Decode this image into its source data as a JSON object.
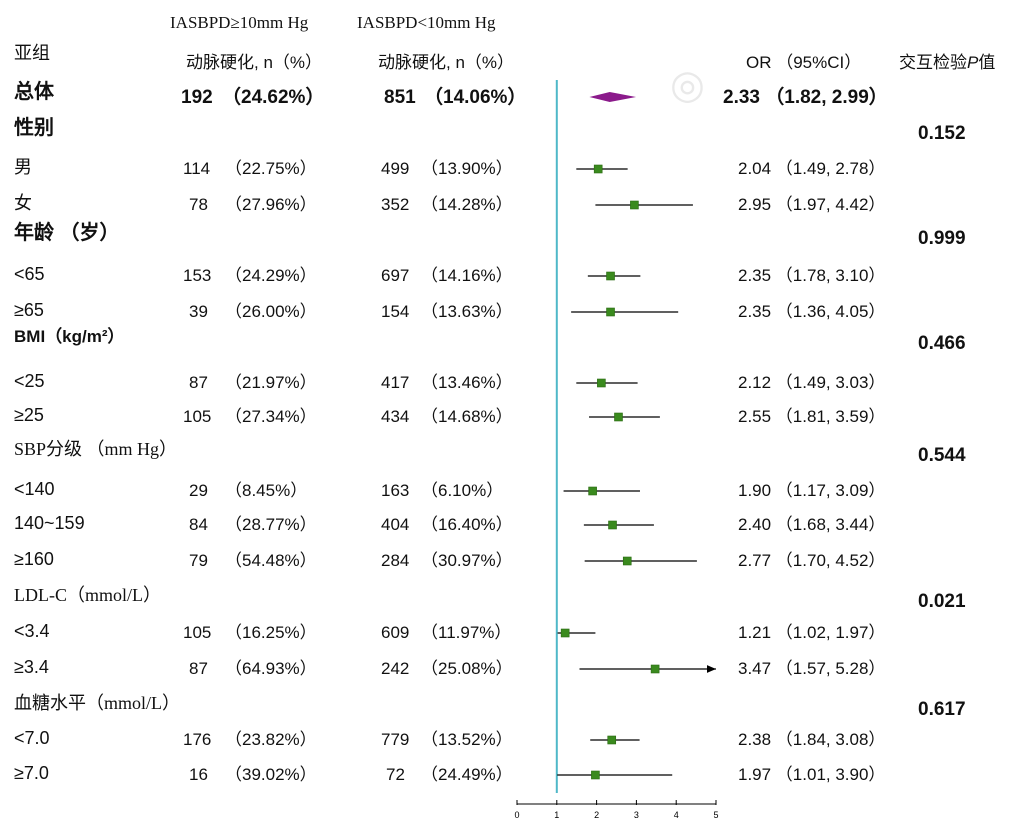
{
  "header": {
    "col1_title": "IASBPD≥10mm Hg",
    "col2_title": "IASBPD<10mm Hg",
    "subgroup_title": "亚组",
    "col1_sub": "动脉硬化, n（%）",
    "col2_sub": "动脉硬化, n（%）",
    "or_title": "OR （95%CI）",
    "p_title_prefix": "交互检验",
    "p_title_italic": "P",
    "p_title_suffix": "值"
  },
  "rows": [
    {
      "label": "总体",
      "kind": "overall",
      "c1n": "192",
      "c1p": "（24.62%）",
      "c2n": "851",
      "c2p": "（14.06%）",
      "or_text": "2.33 （1.82, 2.99）"
    },
    {
      "label": "性别",
      "kind": "group",
      "p": "0.152"
    },
    {
      "label": "男",
      "kind": "item",
      "c1n": "114",
      "c1p": "（22.75%）",
      "c2n": "499",
      "c2p": "（13.90%）",
      "or_text": "2.04 （1.49, 2.78）"
    },
    {
      "label": "女",
      "kind": "item",
      "c1n": "78",
      "c1p": "（27.96%）",
      "c2n": "352",
      "c2p": "（14.28%）",
      "or_text": "2.95 （1.97, 4.42）"
    },
    {
      "label": "年龄 （岁）",
      "kind": "group",
      "p": "0.999"
    },
    {
      "label": "<65",
      "kind": "item",
      "c1n": "153",
      "c1p": "（24.29%）",
      "c2n": "697",
      "c2p": "（14.16%）",
      "or_text": "2.35 （1.78, 3.10）"
    },
    {
      "label": "≥65",
      "kind": "item",
      "c1n": "39",
      "c1p": "（26.00%）",
      "c2n": "154",
      "c2p": "（13.63%）",
      "or_text": "2.35 （1.36, 4.05）"
    },
    {
      "label": "BMI（kg/m²）",
      "kind": "group",
      "p": "0.466"
    },
    {
      "label": "<25",
      "kind": "item",
      "c1n": "87",
      "c1p": "（21.97%）",
      "c2n": "417",
      "c2p": "（13.46%）",
      "or_text": "2.12 （1.49, 3.03）"
    },
    {
      "label": "≥25",
      "kind": "item",
      "c1n": "105",
      "c1p": "（27.34%）",
      "c2n": "434",
      "c2p": "（14.68%）",
      "or_text": "2.55 （1.81, 3.59）"
    },
    {
      "label": "SBP分级 （mm Hg）",
      "kind": "group",
      "p": "0.544"
    },
    {
      "label": "<140",
      "kind": "item",
      "c1n": "29",
      "c1p": "（8.45%）",
      "c2n": "163",
      "c2p": "（6.10%）",
      "or_text": "1.90 （1.17, 3.09）"
    },
    {
      "label": "140~159",
      "kind": "item",
      "c1n": "84",
      "c1p": "（28.77%）",
      "c2n": "404",
      "c2p": "（16.40%）",
      "or_text": "2.40 （1.68, 3.44）"
    },
    {
      "label": "≥160",
      "kind": "item",
      "c1n": "79",
      "c1p": "（54.48%）",
      "c2n": "284",
      "c2p": "（30.97%）",
      "or_text": "2.77 （1.70, 4.52）"
    },
    {
      "label": "LDL-C（mmol/L）",
      "kind": "group",
      "p": "0.021"
    },
    {
      "label": "<3.4",
      "kind": "item",
      "c1n": "105",
      "c1p": "（16.25%）",
      "c2n": "609",
      "c2p": "（11.97%）",
      "or_text": "1.21 （1.02, 1.97）"
    },
    {
      "label": "≥3.4",
      "kind": "item",
      "c1n": "87",
      "c1p": "（64.93%）",
      "c2n": "242",
      "c2p": "（25.08%）",
      "or_text": "3.47 （1.57, 5.28）"
    },
    {
      "label": "血糖水平（mmol/L）",
      "kind": "group",
      "p": "0.617"
    },
    {
      "label": "<7.0",
      "kind": "item",
      "c1n": "176",
      "c1p": "（23.82%）",
      "c2n": "779",
      "c2p": "（13.52%）",
      "or_text": "2.38 （1.84, 3.08）"
    },
    {
      "label": "≥7.0",
      "kind": "item",
      "c1n": "16",
      "c1p": "（39.02%）",
      "c2n": "72",
      "c2p": "（24.49%）",
      "or_text": "1.97 （1.01, 3.90）"
    }
  ],
  "chart_data": {
    "type": "forest",
    "x_ticks": [
      "0",
      "1",
      "2",
      "3",
      "4",
      "5"
    ],
    "xlim": [
      0,
      5
    ],
    "reference_line": 1,
    "colors": {
      "overall_diamond": "#8b1a8b",
      "point": "#3a8a1e",
      "reference": "#4fb8c8",
      "ci": "#000000"
    },
    "points": [
      {
        "name": "总体",
        "or": 2.33,
        "lo": 1.82,
        "hi": 2.99,
        "shape": "diamond"
      },
      {
        "name": "男",
        "or": 2.04,
        "lo": 1.49,
        "hi": 2.78
      },
      {
        "name": "女",
        "or": 2.95,
        "lo": 1.97,
        "hi": 4.42
      },
      {
        "name": "<65",
        "or": 2.35,
        "lo": 1.78,
        "hi": 3.1
      },
      {
        "name": "≥65",
        "or": 2.35,
        "lo": 1.36,
        "hi": 4.05
      },
      {
        "name": "<25",
        "or": 2.12,
        "lo": 1.49,
        "hi": 3.03
      },
      {
        "name": "≥25",
        "or": 2.55,
        "lo": 1.81,
        "hi": 3.59
      },
      {
        "name": "<140",
        "or": 1.9,
        "lo": 1.17,
        "hi": 3.09
      },
      {
        "name": "140~159",
        "or": 2.4,
        "lo": 1.68,
        "hi": 3.44
      },
      {
        "name": "≥160",
        "or": 2.77,
        "lo": 1.7,
        "hi": 4.52
      },
      {
        "name": "<3.4",
        "or": 1.21,
        "lo": 1.02,
        "hi": 1.97
      },
      {
        "name": "≥3.4",
        "or": 3.47,
        "lo": 1.57,
        "hi": 5.28,
        "arrow": true
      },
      {
        "name": "<7.0",
        "or": 2.38,
        "lo": 1.84,
        "hi": 3.08
      },
      {
        "name": "≥7.0",
        "or": 1.97,
        "lo": 1.01,
        "hi": 3.9
      }
    ]
  }
}
